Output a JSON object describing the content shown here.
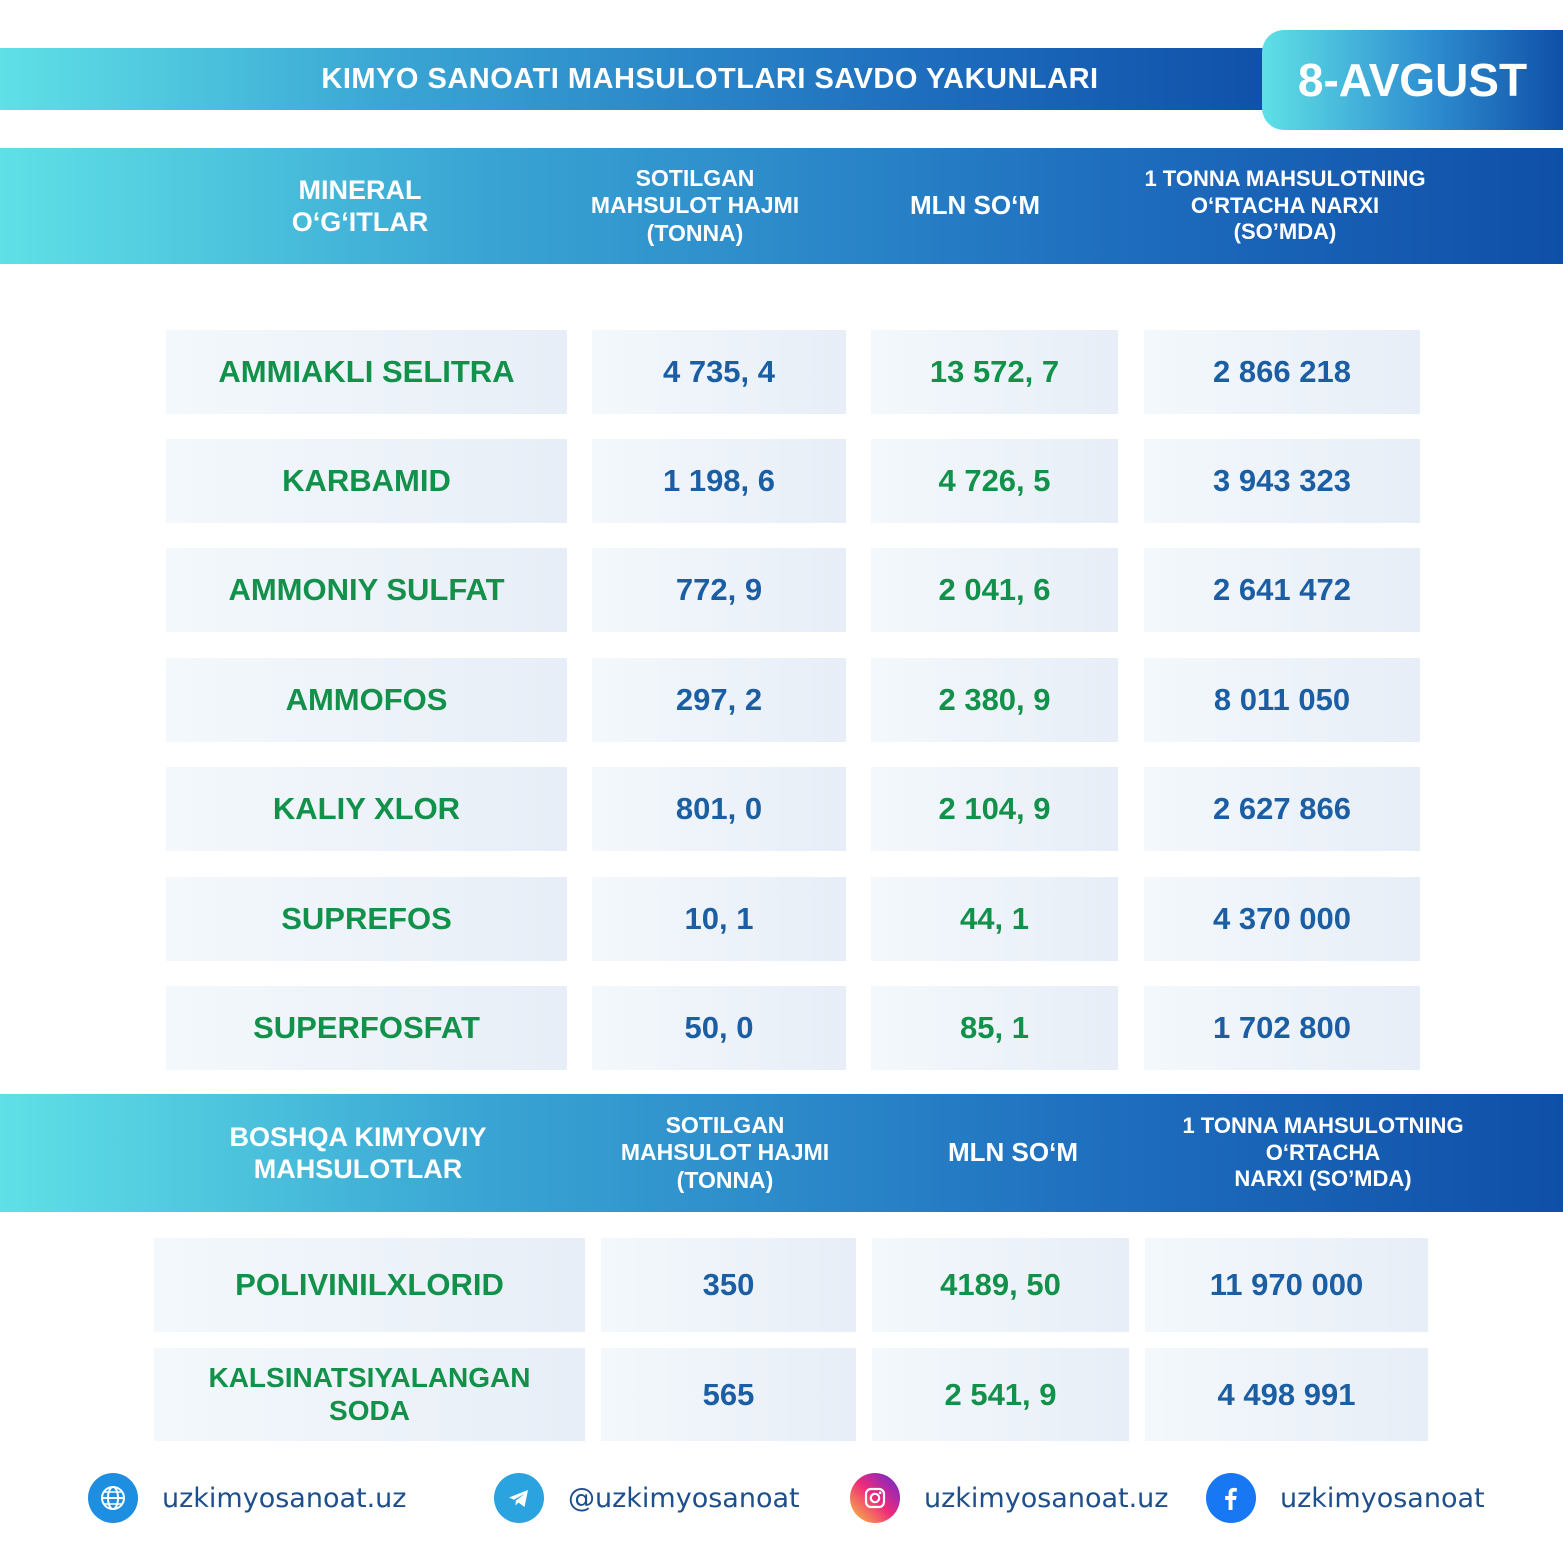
{
  "title": "KIMYO SANOATI MAHSULOTLARI SAVDO YAKUNLARI",
  "date": "8-AVGUST",
  "section1": {
    "headers": [
      "MINERAL\nO‘G‘ITLAR",
      "SOTILGAN\nMAHSULOT HAJMI\n(TONNA)",
      "MLN SO‘M",
      "1 TONNA MAHSULOTNING\nO‘RTACHA NARXI\n(SO’MDA)"
    ],
    "rows": [
      {
        "name": "AMMIAKLI SELITRA",
        "volume": "4 735, 4",
        "mln": "13 572, 7",
        "price": "2 866 218"
      },
      {
        "name": "KARBAMID",
        "volume": "1 198, 6",
        "mln": "4 726, 5",
        "price": "3 943 323"
      },
      {
        "name": "AMMONIY SULFAT",
        "volume": "772, 9",
        "mln": "2 041, 6",
        "price": "2 641 472"
      },
      {
        "name": "AMMOFOS",
        "volume": "297, 2",
        "mln": "2 380, 9",
        "price": "8 011 050"
      },
      {
        "name": "KALIY XLOR",
        "volume": "801, 0",
        "mln": "2 104, 9",
        "price": "2 627 866"
      },
      {
        "name": "SUPREFOS",
        "volume": "10, 1",
        "mln": "44, 1",
        "price": "4 370 000"
      },
      {
        "name": "SUPERFOSFAT",
        "volume": "50, 0",
        "mln": "85, 1",
        "price": "1 702 800"
      }
    ]
  },
  "section2": {
    "headers": [
      "BOSHQA KIMYOVIY\nMAHSULOTLAR",
      "SOTILGAN\nMAHSULOT HAJMI\n(TONNA)",
      "MLN SO‘M",
      "1 TONNA MAHSULOTNING\nO‘RTACHA\nNARXI (SO’MDA)"
    ],
    "rows": [
      {
        "name": "POLIVINILXLORID",
        "volume": "350",
        "mln": "4189, 50",
        "price": "11 970 000"
      },
      {
        "name": "KALSINATSIYALANGAN\nSODA",
        "volume": "565",
        "mln": "2 541, 9",
        "price": "4 498 991"
      }
    ]
  },
  "footer": {
    "website": "uzkimyosanoat.uz",
    "telegram": "@uzkimyosanoat",
    "instagram": "uzkimyosanoat.uz",
    "facebook": "uzkimyosanoat",
    "icons": [
      "globe-icon",
      "telegram-icon",
      "instagram-icon",
      "facebook-icon"
    ]
  },
  "colors": {
    "green": "#12914a",
    "blue": "#1b5ea3",
    "gradient_start": "#5fe0e6",
    "gradient_end": "#0f4fa8"
  }
}
